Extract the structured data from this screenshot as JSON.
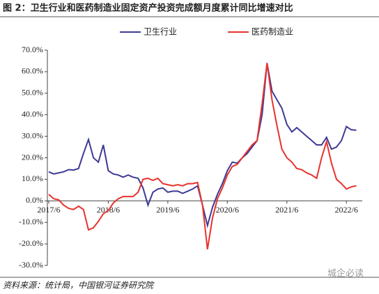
{
  "chart_data": {
    "type": "line",
    "title": "图 2：卫生行业和医药制造业固定资产投资完成额月度累计同比增速对比",
    "source": "资料来源：统计局，中国银河证券研究院",
    "watermark": "城企必读",
    "x": [
      "2017/6",
      "2017/7",
      "2017/8",
      "2017/9",
      "2017/10",
      "2017/11",
      "2017/12",
      "2018/1",
      "2018/2",
      "2018/3",
      "2018/4",
      "2018/5",
      "2018/6",
      "2018/7",
      "2018/8",
      "2018/9",
      "2018/10",
      "2018/11",
      "2018/12",
      "2019/1",
      "2019/2",
      "2019/3",
      "2019/4",
      "2019/5",
      "2019/6",
      "2019/7",
      "2019/8",
      "2019/9",
      "2019/10",
      "2019/11",
      "2019/12",
      "2020/1",
      "2020/2",
      "2020/3",
      "2020/4",
      "2020/5",
      "2020/6",
      "2020/7",
      "2020/8",
      "2020/9",
      "2020/10",
      "2020/11",
      "2020/12",
      "2021/1",
      "2021/2",
      "2021/3",
      "2021/4",
      "2021/5",
      "2021/6",
      "2021/7",
      "2021/8",
      "2021/9",
      "2021/10",
      "2021/11",
      "2021/12",
      "2022/1",
      "2022/2",
      "2022/3",
      "2022/4",
      "2022/5",
      "2022/6",
      "2022/7",
      "2022/8"
    ],
    "xticks": [
      "2017/6",
      "2018/6",
      "2019/6",
      "2020/6",
      "2021/6",
      "2022/6"
    ],
    "series": [
      {
        "name": "卫生行业",
        "color": "#3d3a94",
        "values": [
          13.5,
          12.5,
          13,
          13.5,
          14.5,
          14.3,
          15,
          22,
          28.5,
          20,
          18,
          26,
          14,
          12.5,
          12,
          11,
          12,
          11,
          10.5,
          6,
          -2,
          4,
          5.5,
          6,
          4,
          4.5,
          4.5,
          3.5,
          4.5,
          5.5,
          7,
          -2,
          -11.5,
          -3,
          3,
          8,
          14,
          18,
          17.5,
          20,
          22,
          25,
          28,
          40,
          64,
          51,
          47,
          43,
          35.5,
          32,
          34,
          32,
          30,
          28,
          26,
          26,
          29.5,
          24,
          25,
          28,
          34.5,
          33,
          32.8
        ]
      },
      {
        "name": "医药制造业",
        "color": "#e8322d",
        "values": [
          3,
          1,
          0.5,
          -2,
          -3.5,
          -4,
          -2.5,
          -4,
          -13.5,
          -12.5,
          -9.5,
          -6,
          -4.5,
          -1,
          1,
          2,
          2,
          2,
          4,
          10,
          10.5,
          9.5,
          10.5,
          8,
          7.5,
          7,
          7.5,
          7,
          8,
          8,
          8.5,
          -2,
          -22.5,
          -8,
          1,
          6,
          12,
          16,
          17,
          20,
          23,
          26,
          28,
          45,
          64,
          47,
          35,
          24,
          20,
          18,
          15,
          14.5,
          13,
          12,
          10.5,
          20,
          27.5,
          17.5,
          10,
          8,
          5.5,
          6.5,
          7
        ]
      }
    ],
    "ylim": [
      -30,
      70
    ],
    "yticks": [
      {
        "value": -30,
        "label": "-30.0%"
      },
      {
        "value": -20,
        "label": "-20.0%"
      },
      {
        "value": -10,
        "label": "-10.0%"
      },
      {
        "value": 0,
        "label": "0.0%"
      },
      {
        "value": 10,
        "label": "10.0%"
      },
      {
        "value": 20,
        "label": "20.0%"
      },
      {
        "value": 30,
        "label": "30.0%"
      },
      {
        "value": 40,
        "label": "40.0%"
      },
      {
        "value": 50,
        "label": "50.0%"
      },
      {
        "value": 60,
        "label": "60.0%"
      },
      {
        "value": 70,
        "label": "70.0%"
      }
    ],
    "legend": "top",
    "grid": false
  }
}
